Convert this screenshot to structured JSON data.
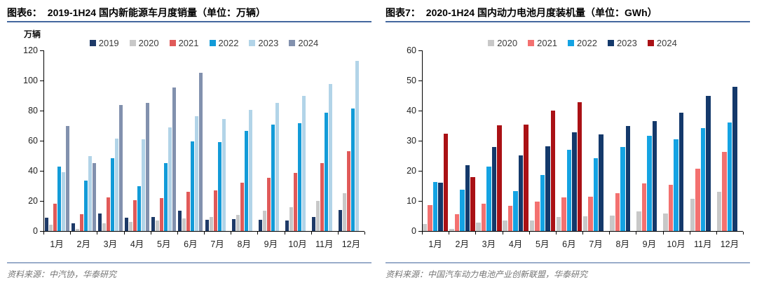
{
  "chart_data": [
    {
      "type": "bar",
      "figure_label": "图表6：",
      "title": "2019-1H24 国内新能源车月度销量（单位：万辆）",
      "unit_label": "万辆",
      "categories": [
        "1月",
        "2月",
        "3月",
        "4月",
        "5月",
        "6月",
        "7月",
        "8月",
        "9月",
        "10月",
        "11月",
        "12月"
      ],
      "series": [
        {
          "name": "2019",
          "color": "#1E3A68",
          "values": [
            9,
            5,
            11.5,
            9,
            9.5,
            13.5,
            7.5,
            8,
            7.5,
            7,
            9.5,
            14
          ]
        },
        {
          "name": "2020",
          "color": "#C8C8C8",
          "values": [
            4,
            1.5,
            5,
            6,
            7,
            8.5,
            9.5,
            10.5,
            13.5,
            16,
            20,
            25
          ]
        },
        {
          "name": "2021",
          "color": "#E05A59",
          "values": [
            18,
            11,
            22.5,
            20.5,
            22,
            26,
            27,
            32,
            35.5,
            38.5,
            45,
            53
          ]
        },
        {
          "name": "2022",
          "color": "#129BD8",
          "values": [
            43,
            33.5,
            48.5,
            30,
            45,
            59.5,
            59,
            66.5,
            70.5,
            71.5,
            78.5,
            81.5
          ]
        },
        {
          "name": "2023",
          "color": "#B2D4E8",
          "values": [
            39,
            50,
            61.5,
            61,
            69,
            76.5,
            74.5,
            80.5,
            85,
            90,
            97.5,
            113
          ]
        },
        {
          "name": "2024",
          "color": "#8291AE",
          "values": [
            70,
            45,
            83.5,
            85,
            95.5,
            105,
            null,
            null,
            null,
            null,
            null,
            null
          ]
        }
      ],
      "ylim": [
        0,
        120
      ],
      "ytick_step": 20,
      "grid": false,
      "legend_position": "top-center",
      "source": "资料来源：中汽协，华泰研究"
    },
    {
      "type": "bar",
      "figure_label": "图表7：",
      "title": "2020-1H24 国内动力电池月度装机量（单位：GWh）",
      "unit_label": "",
      "categories": [
        "1月",
        "2月",
        "3月",
        "4月",
        "5月",
        "6月",
        "7月",
        "8月",
        "9月",
        "10月",
        "11月",
        "12月"
      ],
      "series": [
        {
          "name": "2020",
          "color": "#C8C8C8",
          "values": [
            2.3,
            0.6,
            2.8,
            3.6,
            3.5,
            4.7,
            5,
            5.1,
            6.6,
            5.9,
            10.6,
            13
          ]
        },
        {
          "name": "2021",
          "color": "#F37170",
          "values": [
            8.7,
            5.5,
            9,
            8.4,
            9.8,
            11.1,
            11.3,
            12.6,
            15.7,
            15.4,
            20.8,
            26.2
          ]
        },
        {
          "name": "2022",
          "color": "#14A3E3",
          "values": [
            16.2,
            13.7,
            21.4,
            13.3,
            18.6,
            27,
            24.2,
            27.8,
            31.6,
            30.5,
            34.3,
            36.1
          ]
        },
        {
          "name": "2023",
          "color": "#14396B",
          "values": [
            16.1,
            21.9,
            27.8,
            25.1,
            28.2,
            32.9,
            32.2,
            34.9,
            36.4,
            39.2,
            44.9,
            47.9
          ]
        },
        {
          "name": "2024",
          "color": "#AA1115",
          "values": [
            32.3,
            18,
            35.1,
            35.4,
            39.9,
            42.8,
            null,
            null,
            null,
            null,
            null,
            null
          ]
        }
      ],
      "ylim": [
        0,
        60
      ],
      "ytick_step": 10,
      "grid": false,
      "legend_position": "top-center",
      "source": "资料来源：中国汽车动力电池产业创新联盟，华泰研究"
    }
  ],
  "colors": {
    "rule_blue": "#44679E",
    "axis_black": "#000000",
    "footer_gray": "#757575"
  }
}
